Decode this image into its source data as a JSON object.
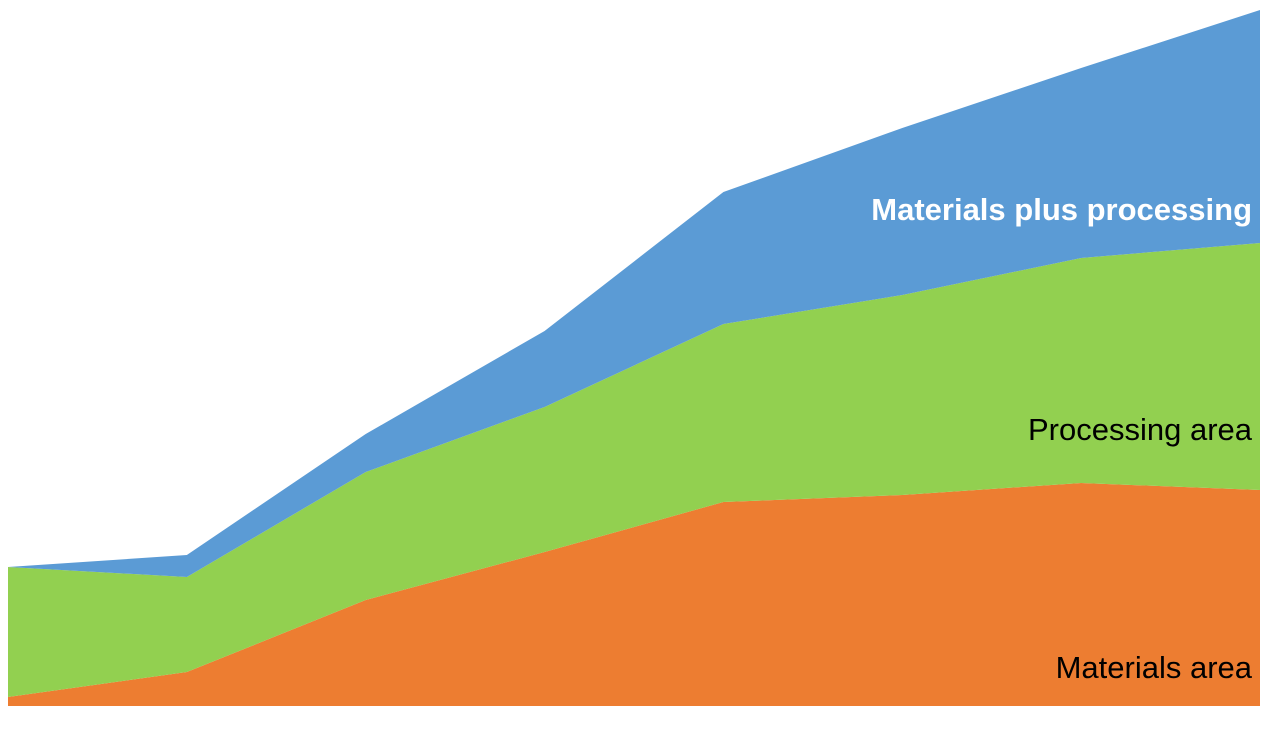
{
  "chart_data": {
    "type": "stacked-area",
    "categories": [
      null,
      null,
      null,
      null,
      null,
      null,
      null,
      null
    ],
    "ylim": [
      0,
      700
    ],
    "series": [
      {
        "name": "Materials area",
        "color": "#ed7d31",
        "values": [
          9,
          34,
          106,
          154,
          204,
          211,
          223,
          216
        ]
      },
      {
        "name": "Processing area",
        "color": "#92d050",
        "values": [
          130,
          95,
          128,
          145,
          178,
          200,
          225,
          247
        ]
      },
      {
        "name": "Materials plus processing",
        "color": "#5b9bd5",
        "values": [
          0,
          22,
          38,
          76,
          132,
          167,
          190,
          233
        ]
      }
    ]
  }
}
